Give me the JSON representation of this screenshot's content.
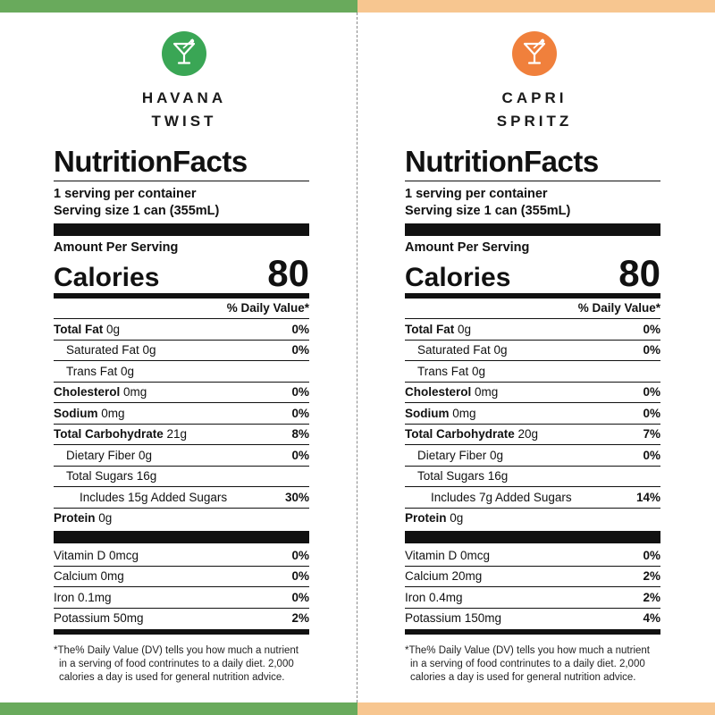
{
  "colors": {
    "left_accent": "#3aa655",
    "left_band": "#69aa5c",
    "right_accent": "#f0803c",
    "right_band": "#f7c690"
  },
  "panels": [
    {
      "icon": "martini-glass-icon",
      "brand_line1": "HAVANA",
      "brand_line2": "TWIST",
      "title": "NutritionFacts",
      "servings_per_container": "1 serving per container",
      "serving_size": "Serving size 1 can (355mL)",
      "amount_per_serving": "Amount Per Serving",
      "calories_label": "Calories",
      "calories_value": "80",
      "daily_value_header": "% Daily Value*",
      "nutrients": {
        "total_fat": {
          "name": "Total Fat",
          "amount": "0g",
          "dv": "0%"
        },
        "saturated_fat": {
          "name": "Saturated Fat 0g",
          "dv": "0%"
        },
        "trans_fat": {
          "name": "Trans Fat 0g"
        },
        "cholesterol": {
          "name": "Cholesterol",
          "amount": "0mg",
          "dv": "0%"
        },
        "sodium": {
          "name": "Sodium",
          "amount": "0mg",
          "dv": "0%"
        },
        "total_carb": {
          "name": "Total Carbohydrate",
          "amount": "21g",
          "dv": "8%"
        },
        "dietary_fiber": {
          "name": "Dietary Fiber 0g",
          "dv": "0%"
        },
        "total_sugars": {
          "name": "Total Sugars 16g"
        },
        "added_sugars": {
          "name": "Includes 15g Added Sugars",
          "dv": "30%"
        },
        "protein": {
          "name": "Protein",
          "amount": "0g"
        }
      },
      "vitamins": [
        {
          "name": "Vitamin D 0mcg",
          "dv": "0%"
        },
        {
          "name": "Calcium 0mg",
          "dv": "0%"
        },
        {
          "name": "Iron 0.1mg",
          "dv": "0%"
        },
        {
          "name": "Potassium 50mg",
          "dv": "2%"
        }
      ],
      "footnote_line1": "*The% Daily Value (DV) tells you how much a nutrient",
      "footnote_line2": "in a serving of food contrinutes to a daily diet. 2,000",
      "footnote_line3": "calories a day is used for general nutrition advice."
    },
    {
      "icon": "martini-glass-icon",
      "brand_line1": "CAPRI",
      "brand_line2": "SPRITZ",
      "title": "NutritionFacts",
      "servings_per_container": "1 serving per container",
      "serving_size": "Serving size 1 can (355mL)",
      "amount_per_serving": "Amount Per Serving",
      "calories_label": "Calories",
      "calories_value": "80",
      "daily_value_header": "% Daily Value*",
      "nutrients": {
        "total_fat": {
          "name": "Total Fat",
          "amount": "0g",
          "dv": "0%"
        },
        "saturated_fat": {
          "name": "Saturated Fat 0g",
          "dv": "0%"
        },
        "trans_fat": {
          "name": "Trans Fat 0g"
        },
        "cholesterol": {
          "name": "Cholesterol",
          "amount": "0mg",
          "dv": "0%"
        },
        "sodium": {
          "name": "Sodium",
          "amount": "0mg",
          "dv": "0%"
        },
        "total_carb": {
          "name": "Total Carbohydrate",
          "amount": "20g",
          "dv": "7%"
        },
        "dietary_fiber": {
          "name": "Dietary Fiber 0g",
          "dv": "0%"
        },
        "total_sugars": {
          "name": "Total Sugars 16g"
        },
        "added_sugars": {
          "name": "Includes 7g Added Sugars",
          "dv": "14%"
        },
        "protein": {
          "name": "Protein",
          "amount": "0g"
        }
      },
      "vitamins": [
        {
          "name": "Vitamin D 0mcg",
          "dv": "0%"
        },
        {
          "name": "Calcium 20mg",
          "dv": "2%"
        },
        {
          "name": "Iron 0.4mg",
          "dv": "2%"
        },
        {
          "name": "Potassium 150mg",
          "dv": "4%"
        }
      ],
      "footnote_line1": "*The% Daily Value (DV) tells you how much a nutrient",
      "footnote_line2": "in a serving of food contrinutes to a daily diet. 2,000",
      "footnote_line3": "calories a day is used for general nutrition advice."
    }
  ]
}
